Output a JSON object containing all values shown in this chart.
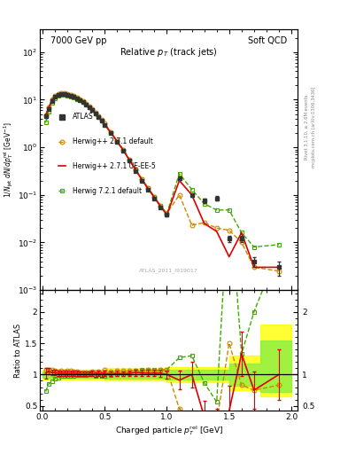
{
  "title_left": "7000 GeV pp",
  "title_right": "Soft QCD",
  "plot_title": "Relative p$_{T}$ (track jets)",
  "xlabel": "Charged particle p$_{T}^{rel}$ [GeV]",
  "ylabel_main": "1/N$_{jet}$ dN/dp$_{T}^{rel}$ [GeV$^{-1}$]",
  "ylabel_ratio": "Ratio to ATLAS",
  "right_label_top": "Rivet 3.1.10, ≥ 2.6M events",
  "right_label_bot": "mcplots.cern.ch [arXiv:1306.3436]",
  "watermark": "ATLAS_2011_I919017",
  "atlas_x": [
    0.025,
    0.05,
    0.075,
    0.1,
    0.125,
    0.15,
    0.175,
    0.2,
    0.225,
    0.25,
    0.275,
    0.3,
    0.325,
    0.35,
    0.375,
    0.4,
    0.425,
    0.45,
    0.475,
    0.5,
    0.55,
    0.6,
    0.65,
    0.7,
    0.75,
    0.8,
    0.85,
    0.9,
    0.95,
    1.0,
    1.1,
    1.2,
    1.3,
    1.4,
    1.5,
    1.6,
    1.7,
    1.9
  ],
  "atlas_y": [
    4.5,
    6.5,
    9.5,
    11.5,
    12.8,
    13.0,
    13.0,
    12.5,
    12.0,
    11.5,
    10.5,
    9.8,
    9.0,
    8.0,
    7.0,
    6.0,
    5.2,
    4.3,
    3.7,
    3.0,
    2.0,
    1.3,
    0.85,
    0.52,
    0.32,
    0.2,
    0.13,
    0.085,
    0.055,
    0.038,
    0.22,
    0.1,
    0.075,
    0.085,
    0.012,
    0.012,
    0.004,
    0.003
  ],
  "atlas_yerr": [
    0.4,
    0.5,
    0.6,
    0.6,
    0.6,
    0.6,
    0.6,
    0.5,
    0.5,
    0.5,
    0.4,
    0.4,
    0.35,
    0.3,
    0.28,
    0.25,
    0.22,
    0.18,
    0.15,
    0.12,
    0.08,
    0.05,
    0.035,
    0.022,
    0.014,
    0.009,
    0.006,
    0.004,
    0.003,
    0.002,
    0.015,
    0.008,
    0.007,
    0.008,
    0.002,
    0.002,
    0.001,
    0.001
  ],
  "hw271_x": [
    0.025,
    0.05,
    0.075,
    0.1,
    0.125,
    0.15,
    0.175,
    0.2,
    0.225,
    0.25,
    0.275,
    0.3,
    0.325,
    0.35,
    0.375,
    0.4,
    0.425,
    0.45,
    0.475,
    0.5,
    0.55,
    0.6,
    0.65,
    0.7,
    0.75,
    0.8,
    0.85,
    0.9,
    0.95,
    1.0,
    1.1,
    1.2,
    1.3,
    1.4,
    1.5,
    1.6,
    1.7,
    1.9
  ],
  "hw271_y": [
    4.8,
    7.0,
    10.2,
    12.2,
    13.5,
    13.8,
    13.7,
    13.2,
    12.7,
    12.1,
    11.0,
    10.2,
    9.4,
    8.3,
    7.3,
    6.3,
    5.4,
    4.5,
    3.8,
    3.2,
    2.1,
    1.38,
    0.9,
    0.55,
    0.34,
    0.21,
    0.14,
    0.09,
    0.059,
    0.041,
    0.1,
    0.023,
    0.026,
    0.02,
    0.018,
    0.01,
    0.003,
    0.0025
  ],
  "hw271ue_x": [
    0.025,
    0.05,
    0.075,
    0.1,
    0.125,
    0.15,
    0.175,
    0.2,
    0.225,
    0.25,
    0.275,
    0.3,
    0.325,
    0.35,
    0.375,
    0.4,
    0.425,
    0.45,
    0.475,
    0.5,
    0.55,
    0.6,
    0.65,
    0.7,
    0.75,
    0.8,
    0.85,
    0.9,
    0.95,
    1.0,
    1.1,
    1.2,
    1.3,
    1.4,
    1.5,
    1.6,
    1.7,
    1.9
  ],
  "hw271ue_y": [
    4.6,
    6.8,
    9.8,
    11.8,
    13.1,
    13.3,
    13.2,
    12.7,
    12.2,
    11.7,
    10.7,
    9.9,
    9.1,
    8.1,
    7.1,
    6.1,
    5.2,
    4.4,
    3.7,
    3.05,
    2.02,
    1.32,
    0.86,
    0.53,
    0.33,
    0.205,
    0.133,
    0.087,
    0.056,
    0.038,
    0.2,
    0.1,
    0.025,
    0.017,
    0.005,
    0.016,
    0.003,
    0.003
  ],
  "hw721_x": [
    0.025,
    0.05,
    0.075,
    0.1,
    0.125,
    0.15,
    0.175,
    0.2,
    0.225,
    0.25,
    0.275,
    0.3,
    0.325,
    0.35,
    0.375,
    0.4,
    0.425,
    0.45,
    0.475,
    0.5,
    0.55,
    0.6,
    0.65,
    0.7,
    0.75,
    0.8,
    0.85,
    0.9,
    0.95,
    1.0,
    1.1,
    1.2,
    1.3,
    1.4,
    1.5,
    1.6,
    1.7,
    1.9
  ],
  "hw721_y": [
    3.3,
    5.5,
    8.5,
    10.8,
    12.2,
    12.6,
    12.7,
    12.3,
    11.8,
    11.3,
    10.4,
    9.7,
    8.9,
    7.9,
    7.0,
    6.0,
    5.1,
    4.3,
    3.6,
    2.95,
    1.98,
    1.3,
    0.86,
    0.53,
    0.34,
    0.215,
    0.14,
    0.091,
    0.059,
    0.041,
    0.28,
    0.13,
    0.065,
    0.048,
    0.048,
    0.016,
    0.008,
    0.009
  ],
  "ratio_hw271_y": [
    1.07,
    1.08,
    1.07,
    1.06,
    1.05,
    1.06,
    1.05,
    1.06,
    1.06,
    1.05,
    1.05,
    1.04,
    1.04,
    1.04,
    1.04,
    1.05,
    1.04,
    1.05,
    1.03,
    1.07,
    1.05,
    1.06,
    1.06,
    1.06,
    1.06,
    1.05,
    1.08,
    1.06,
    1.07,
    1.08,
    0.45,
    0.23,
    0.35,
    0.24,
    1.5,
    0.83,
    0.75,
    0.83
  ],
  "ratio_hw271ue_y": [
    1.02,
    1.05,
    1.03,
    1.03,
    1.02,
    1.02,
    1.02,
    1.02,
    1.02,
    1.02,
    1.02,
    1.01,
    1.01,
    1.01,
    1.01,
    1.02,
    1.0,
    1.02,
    1.0,
    1.02,
    1.01,
    1.02,
    1.01,
    1.02,
    1.03,
    1.025,
    1.02,
    1.02,
    1.02,
    1.0,
    0.91,
    1.0,
    0.33,
    0.2,
    0.42,
    1.33,
    0.75,
    1.0
  ],
  "ratio_hw271ue_yerr": [
    0.08,
    0.05,
    0.04,
    0.04,
    0.04,
    0.04,
    0.04,
    0.04,
    0.04,
    0.04,
    0.04,
    0.04,
    0.04,
    0.04,
    0.04,
    0.04,
    0.04,
    0.04,
    0.04,
    0.04,
    0.04,
    0.04,
    0.04,
    0.04,
    0.05,
    0.05,
    0.05,
    0.05,
    0.06,
    0.06,
    0.15,
    0.2,
    0.25,
    0.25,
    0.4,
    0.35,
    0.3,
    0.4
  ],
  "ratio_hw721_y": [
    0.73,
    0.85,
    0.89,
    0.94,
    0.95,
    0.97,
    0.98,
    0.98,
    0.98,
    0.98,
    0.99,
    0.99,
    0.99,
    0.99,
    1.0,
    1.0,
    0.98,
    1.0,
    0.97,
    0.98,
    0.99,
    1.0,
    1.01,
    1.02,
    1.06,
    1.075,
    1.08,
    1.07,
    1.07,
    1.08,
    1.27,
    1.3,
    0.87,
    0.56,
    4.0,
    1.33,
    2.0,
    3.0
  ],
  "band_x_edges": [
    0.0,
    0.5,
    1.0,
    1.5,
    1.75,
    2.0
  ],
  "band_yellow_lo": [
    0.92,
    0.9,
    0.88,
    0.75,
    0.65,
    0.65
  ],
  "band_yellow_hi": [
    1.08,
    1.1,
    1.12,
    1.3,
    1.8,
    2.1
  ],
  "band_green_lo": [
    0.95,
    0.93,
    0.92,
    0.82,
    0.72,
    0.72
  ],
  "band_green_hi": [
    1.05,
    1.06,
    1.08,
    1.18,
    1.55,
    1.7
  ],
  "atlas_color": "#333333",
  "hw271_color": "#cc8800",
  "hw271ue_color": "#dd0000",
  "hw721_color": "#44aa00",
  "legend_labels": [
    "ATLAS",
    "Herwig++ 2.7.1 default",
    "Herwig++ 2.7.1 UE-EE-5",
    "Herwig 7.2.1 default"
  ],
  "ylim_main": [
    0.001,
    300
  ],
  "ylim_ratio": [
    0.42,
    2.35
  ],
  "xlim": [
    -0.02,
    2.05
  ]
}
